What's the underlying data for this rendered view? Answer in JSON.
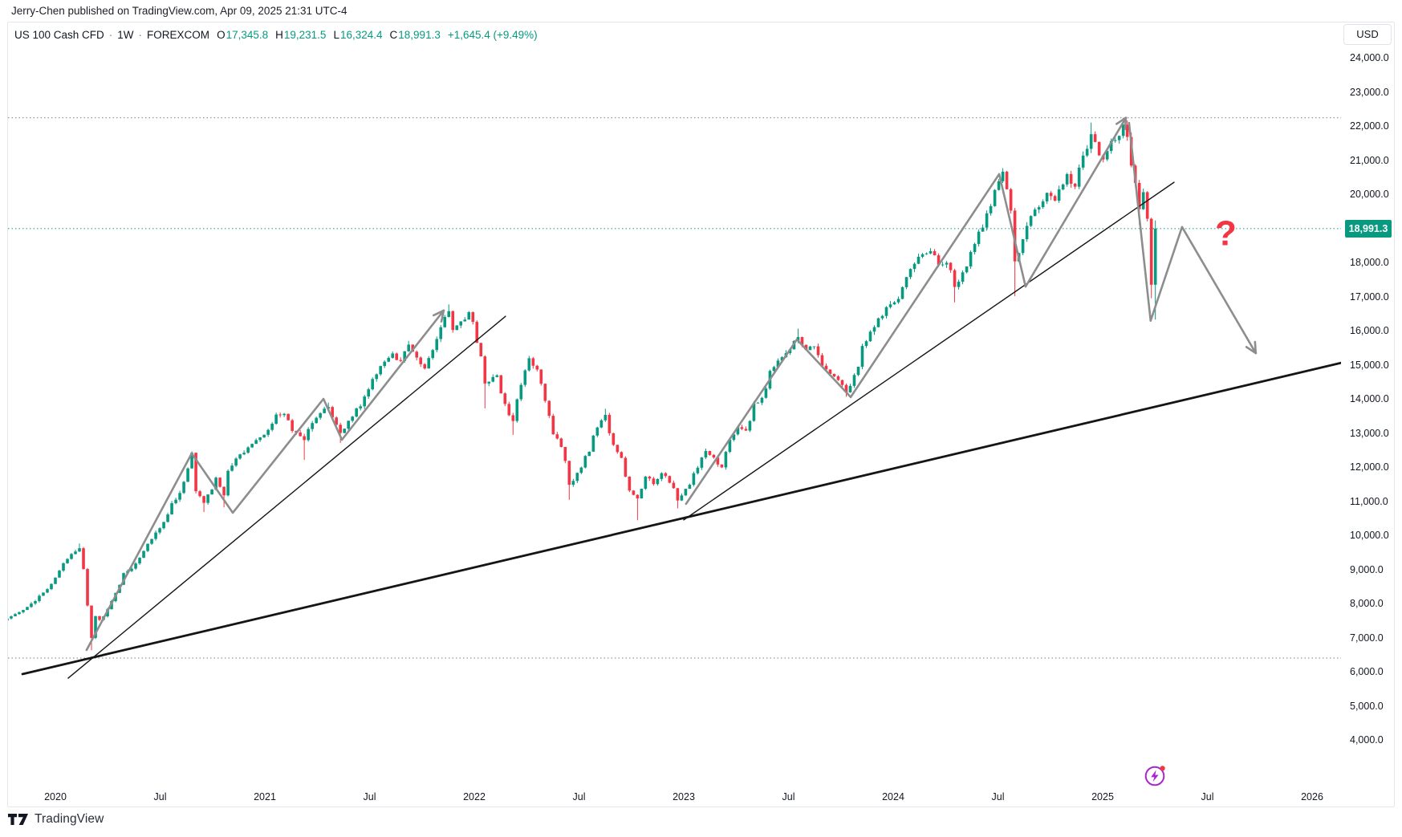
{
  "header": {
    "publisher": "Jerry-Chen published on TradingView.com, Apr 09, 2025 21:31 UTC-4"
  },
  "legend": {
    "symbol": "US 100 Cash CFD",
    "separator": "·",
    "interval": "1W",
    "exchange": "FOREXCOM",
    "ohlc": [
      {
        "k": "O",
        "v": "17,345.8"
      },
      {
        "k": "H",
        "v": "19,231.5"
      },
      {
        "k": "L",
        "v": "16,324.4"
      },
      {
        "k": "C",
        "v": "18,991.3"
      }
    ],
    "change": "+1,645.4 (+9.49%)"
  },
  "price_axis": {
    "currency": "USD",
    "min": 4000,
    "max": 24000,
    "step": 1000,
    "hidden_ticks": [
      19000
    ],
    "last_price": 18991.3,
    "last_price_label": "18,991.3"
  },
  "time_axis": {
    "ticks": [
      {
        "label": "2020",
        "t": 2020.0
      },
      {
        "label": "Jul",
        "t": 2020.5
      },
      {
        "label": "2021",
        "t": 2021.0
      },
      {
        "label": "Jul",
        "t": 2021.5
      },
      {
        "label": "2022",
        "t": 2022.0
      },
      {
        "label": "Jul",
        "t": 2022.5
      },
      {
        "label": "2023",
        "t": 2023.0
      },
      {
        "label": "Jul",
        "t": 2023.5
      },
      {
        "label": "2024",
        "t": 2024.0
      },
      {
        "label": "Jul",
        "t": 2024.5
      },
      {
        "label": "2025",
        "t": 2025.0
      },
      {
        "label": "Jul",
        "t": 2025.5
      },
      {
        "label": "2026",
        "t": 2026.0
      }
    ]
  },
  "footer": {
    "brand": "TradingView"
  },
  "colors": {
    "up": "#089981",
    "down": "#f23645",
    "teal": "#089981",
    "red": "#f23645",
    "drawing_gray": "#8d8d8d",
    "trendline_black": "#151515",
    "level_gray": "#787b86",
    "axis_text": "#131722",
    "purple": "#a826cf"
  },
  "chart_data": {
    "type": "candlestick",
    "title": "US 100 Cash CFD · 1W · FOREXCOM",
    "x_range": [
      2019.75,
      2026.3
    ],
    "y_range": [
      4000,
      24000
    ],
    "grid": false,
    "current_bar": {
      "open": 17345.8,
      "high": 19231.5,
      "low": 16324.4,
      "close": 18991.3,
      "change_abs": 1645.4,
      "change_pct": 9.49
    },
    "weekly_close_anchors": [
      [
        2019.77,
        7560
      ],
      [
        2019.81,
        7690
      ],
      [
        2019.85,
        7810
      ],
      [
        2019.9,
        8070
      ],
      [
        2019.96,
        8420
      ],
      [
        2020.0,
        8760
      ],
      [
        2020.04,
        9180
      ],
      [
        2020.08,
        9450
      ],
      [
        2020.115,
        9620,
        null,
        9760
      ],
      [
        2020.135,
        9010
      ],
      [
        2020.155,
        7940
      ],
      [
        2020.175,
        6990,
        6630
      ],
      [
        2020.195,
        7630
      ],
      [
        2020.22,
        7520
      ],
      [
        2020.25,
        7830
      ],
      [
        2020.29,
        8310
      ],
      [
        2020.33,
        8890
      ],
      [
        2020.37,
        9020
      ],
      [
        2020.4,
        9340
      ],
      [
        2020.44,
        9750
      ],
      [
        2020.48,
        10080
      ],
      [
        2020.52,
        10390
      ],
      [
        2020.56,
        10940
      ],
      [
        2020.6,
        11240
      ],
      [
        2020.63,
        11960
      ],
      [
        2020.655,
        12420,
        null,
        12460
      ],
      [
        2020.68,
        11290
      ],
      [
        2020.71,
        10950,
        10680
      ],
      [
        2020.74,
        11340
      ],
      [
        2020.77,
        11690
      ],
      [
        2020.8,
        11170,
        10820
      ],
      [
        2020.83,
        11890
      ],
      [
        2020.86,
        12250
      ],
      [
        2020.9,
        12420
      ],
      [
        2020.94,
        12680
      ],
      [
        2020.98,
        12870
      ],
      [
        2021.02,
        13090
      ],
      [
        2021.06,
        13540
      ],
      [
        2021.1,
        13560
      ],
      [
        2021.14,
        13060
      ],
      [
        2021.18,
        12790,
        12210
      ],
      [
        2021.22,
        13290
      ],
      [
        2021.26,
        13580
      ],
      [
        2021.3,
        13760,
        null,
        13890
      ],
      [
        2021.34,
        13240
      ],
      [
        2021.37,
        13000,
        12710
      ],
      [
        2021.41,
        13480
      ],
      [
        2021.45,
        13780
      ],
      [
        2021.49,
        14280
      ],
      [
        2021.53,
        14720
      ],
      [
        2021.57,
        15090
      ],
      [
        2021.61,
        15330
      ],
      [
        2021.64,
        15110
      ],
      [
        2021.68,
        15590,
        null,
        15700
      ],
      [
        2021.72,
        15210
      ],
      [
        2021.76,
        14890
      ],
      [
        2021.8,
        15430
      ],
      [
        2021.84,
        16100
      ],
      [
        2021.87,
        16570,
        null,
        16768
      ],
      [
        2021.9,
        16020
      ],
      [
        2021.94,
        16270
      ],
      [
        2021.98,
        16540
      ],
      [
        2022.02,
        15640
      ],
      [
        2022.06,
        14450,
        13720
      ],
      [
        2022.1,
        14690
      ],
      [
        2022.14,
        13850
      ],
      [
        2022.18,
        13350,
        12945
      ],
      [
        2022.22,
        14410
      ],
      [
        2022.26,
        15190,
        null,
        15260
      ],
      [
        2022.3,
        14860
      ],
      [
        2022.34,
        13940
      ],
      [
        2022.38,
        12960
      ],
      [
        2022.42,
        12590
      ],
      [
        2022.46,
        11480,
        11040
      ],
      [
        2022.5,
        11830
      ],
      [
        2022.54,
        12450
      ],
      [
        2022.58,
        13160
      ],
      [
        2022.62,
        13530,
        null,
        13710
      ],
      [
        2022.66,
        12650
      ],
      [
        2022.7,
        12270
      ],
      [
        2022.74,
        11310
      ],
      [
        2022.78,
        11080,
        10440
      ],
      [
        2022.82,
        11720
      ],
      [
        2022.86,
        11500
      ],
      [
        2022.9,
        11820
      ],
      [
        2022.94,
        11540
      ],
      [
        2022.98,
        11020,
        10790
      ],
      [
        2023.02,
        11480
      ],
      [
        2023.06,
        11980
      ],
      [
        2023.1,
        12470
      ],
      [
        2023.14,
        12280
      ],
      [
        2023.18,
        11990
      ],
      [
        2023.22,
        12800
      ],
      [
        2023.26,
        13170
      ],
      [
        2023.3,
        13070
      ],
      [
        2023.34,
        13870
      ],
      [
        2023.38,
        14030
      ],
      [
        2023.42,
        14820
      ],
      [
        2023.46,
        15220
      ],
      [
        2023.5,
        15450
      ],
      [
        2023.54,
        15810,
        null,
        16060
      ],
      [
        2023.58,
        15430
      ],
      [
        2023.62,
        15540
      ],
      [
        2023.66,
        14970
      ],
      [
        2023.7,
        14730
      ],
      [
        2023.74,
        14550
      ],
      [
        2023.78,
        14190,
        14060
      ],
      [
        2023.82,
        14700
      ],
      [
        2023.86,
        15550
      ],
      [
        2023.9,
        15970
      ],
      [
        2023.94,
        16430
      ],
      [
        2023.98,
        16770
      ],
      [
        2024.02,
        16930
      ],
      [
        2024.06,
        17570
      ],
      [
        2024.1,
        17960
      ],
      [
        2024.14,
        18240
      ],
      [
        2024.18,
        18330,
        null,
        18420
      ],
      [
        2024.22,
        17930
      ],
      [
        2024.26,
        17990
      ],
      [
        2024.3,
        17280,
        16830
      ],
      [
        2024.34,
        17710
      ],
      [
        2024.38,
        18540
      ],
      [
        2024.42,
        19020
      ],
      [
        2024.46,
        19650
      ],
      [
        2024.5,
        20380
      ],
      [
        2024.53,
        20660,
        null,
        20760
      ],
      [
        2024.56,
        19520
      ],
      [
        2024.59,
        18030,
        17010
      ],
      [
        2024.62,
        18680
      ],
      [
        2024.65,
        19360
      ],
      [
        2024.68,
        19550
      ],
      [
        2024.71,
        19790
      ],
      [
        2024.74,
        20040
      ],
      [
        2024.77,
        19810
      ],
      [
        2024.8,
        20140
      ],
      [
        2024.83,
        20590
      ],
      [
        2024.86,
        20220
      ],
      [
        2024.89,
        20780
      ],
      [
        2024.92,
        21330
      ],
      [
        2024.95,
        21760,
        null,
        22100
      ],
      [
        2024.98,
        21140
      ],
      [
        2025.01,
        21020
      ],
      [
        2025.04,
        21560
      ],
      [
        2025.07,
        21710
      ],
      [
        2025.1,
        22040,
        null,
        22240
      ],
      [
        2025.12,
        21680
      ],
      [
        2025.14,
        20840
      ],
      [
        2025.16,
        20330
      ],
      [
        2025.18,
        19560,
        19100
      ],
      [
        2025.2,
        20060
      ],
      [
        2025.22,
        19280
      ],
      [
        2025.235,
        17345.8,
        16950
      ],
      [
        2025.255,
        18991.3,
        16324.4,
        19231.5
      ]
    ],
    "levels": [
      {
        "price": 22240,
        "style": "dotted",
        "color": "gray"
      },
      {
        "price": 18991.3,
        "style": "dotted",
        "color": "teal",
        "is_last_price": true
      },
      {
        "price": 6400,
        "style": "dotted",
        "color": "gray"
      }
    ],
    "trendlines": [
      {
        "name": "support-2020-2021",
        "from": [
          2020.061,
          5810
        ],
        "to": [
          2022.149,
          16420
        ],
        "width": 1.4
      },
      {
        "name": "major-support",
        "from": [
          2019.843,
          5930
        ],
        "to": [
          2026.142,
          15060
        ],
        "width": 2.8
      },
      {
        "name": "support-2023-2025",
        "from": [
          2023.0,
          10450
        ],
        "to": [
          2025.341,
          20350
        ],
        "width": 1.4
      }
    ],
    "zigzags": [
      {
        "name": "impulse-2020-2021",
        "arrow": true,
        "points": [
          [
            2020.149,
            6635
          ],
          [
            2020.651,
            12400
          ],
          [
            2020.847,
            10660
          ],
          [
            2021.28,
            14000
          ],
          [
            2021.368,
            12800
          ],
          [
            2021.854,
            16590
          ]
        ]
      },
      {
        "name": "impulse-2023-2025",
        "arrow": true,
        "points": [
          [
            2023.011,
            10920
          ],
          [
            2023.54,
            15740
          ],
          [
            2023.797,
            14050
          ],
          [
            2024.506,
            20590
          ],
          [
            2024.632,
            17290
          ],
          [
            2025.111,
            22240
          ]
        ]
      },
      {
        "name": "projected-path",
        "arrow": true,
        "points": [
          [
            2025.126,
            22090
          ],
          [
            2025.229,
            16290
          ],
          [
            2025.379,
            19040
          ],
          [
            2025.731,
            15340
          ]
        ]
      }
    ],
    "annotations": [
      {
        "text": "?",
        "t": 2025.588,
        "price": 18880,
        "color": "#f23645",
        "font_size": 44
      }
    ]
  }
}
